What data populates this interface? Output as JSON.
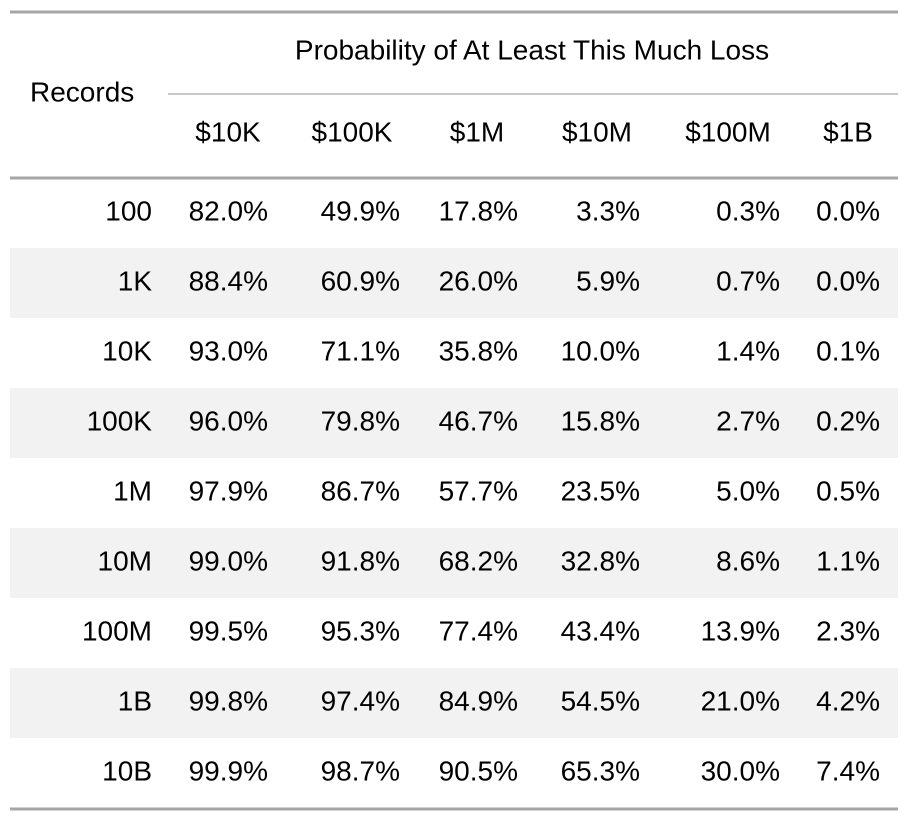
{
  "header": {
    "stub": "Records",
    "spanner": "Probability of At Least This Much Loss",
    "columns": [
      "$10K",
      "$100K",
      "$1M",
      "$10M",
      "$100M",
      "$1B"
    ]
  },
  "table": {
    "rows": [
      [
        "100",
        "82.0%",
        "49.9%",
        "17.8%",
        "3.3%",
        "0.3%",
        "0.0%"
      ],
      [
        "1K",
        "88.4%",
        "60.9%",
        "26.0%",
        "5.9%",
        "0.7%",
        "0.0%"
      ],
      [
        "10K",
        "93.0%",
        "71.1%",
        "35.8%",
        "10.0%",
        "1.4%",
        "0.1%"
      ],
      [
        "100K",
        "96.0%",
        "79.8%",
        "46.7%",
        "15.8%",
        "2.7%",
        "0.2%"
      ],
      [
        "1M",
        "97.9%",
        "86.7%",
        "57.7%",
        "23.5%",
        "5.0%",
        "0.5%"
      ],
      [
        "10M",
        "99.0%",
        "91.8%",
        "68.2%",
        "32.8%",
        "8.6%",
        "1.1%"
      ],
      [
        "100M",
        "99.5%",
        "95.3%",
        "77.4%",
        "43.4%",
        "13.9%",
        "2.3%"
      ],
      [
        "1B",
        "99.8%",
        "97.4%",
        "84.9%",
        "54.5%",
        "21.0%",
        "4.2%"
      ],
      [
        "10B",
        "99.9%",
        "98.7%",
        "90.5%",
        "65.3%",
        "30.0%",
        "7.4%"
      ]
    ]
  }
}
